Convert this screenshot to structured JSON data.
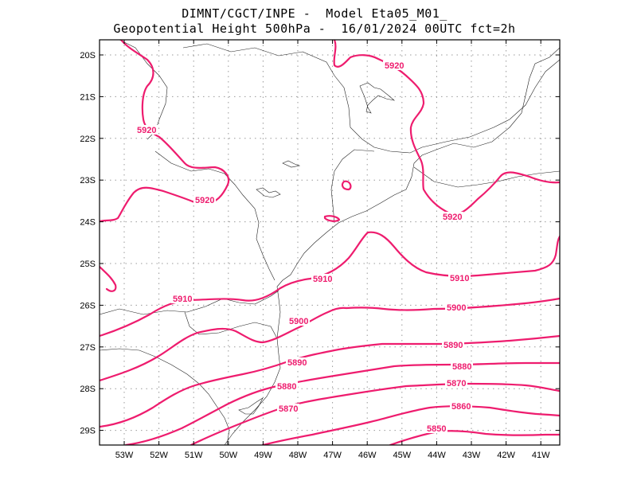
{
  "header": {
    "line1": "DIMNT/CGCT/INPE -  Model Eta05_M01_",
    "line2": "Geopotential Height 500hPa -  16/01/2024 00UTC fct=2h"
  },
  "axes": {
    "lat_labels": [
      "20S",
      "21S",
      "22S",
      "23S",
      "24S",
      "25S",
      "26S",
      "27S",
      "28S",
      "29S"
    ],
    "lon_labels": [
      "53W",
      "52W",
      "51W",
      "50W",
      "49W",
      "48W",
      "47W",
      "46W",
      "45W",
      "44W",
      "43W",
      "42W",
      "41W"
    ]
  },
  "contour_color": "#ee1c6e",
  "contour_labels": [
    {
      "id": "c5920a",
      "text": "5920"
    },
    {
      "id": "c5920b",
      "text": "5920"
    },
    {
      "id": "c5920c",
      "text": "5920"
    },
    {
      "id": "c5920d",
      "text": "5920"
    },
    {
      "id": "c5910a",
      "text": "5910"
    },
    {
      "id": "c5910b",
      "text": "5910"
    },
    {
      "id": "c5910c",
      "text": "5910"
    },
    {
      "id": "c5900a",
      "text": "5900"
    },
    {
      "id": "c5900b",
      "text": "5900"
    },
    {
      "id": "c5890a",
      "text": "5890"
    },
    {
      "id": "c5890b",
      "text": "5890"
    },
    {
      "id": "c5880a",
      "text": "5880"
    },
    {
      "id": "c5880b",
      "text": "5880"
    },
    {
      "id": "c5870a",
      "text": "5870"
    },
    {
      "id": "c5870b",
      "text": "5870"
    },
    {
      "id": "c5860",
      "text": "5860"
    },
    {
      "id": "c5850",
      "text": "5850"
    }
  ]
}
